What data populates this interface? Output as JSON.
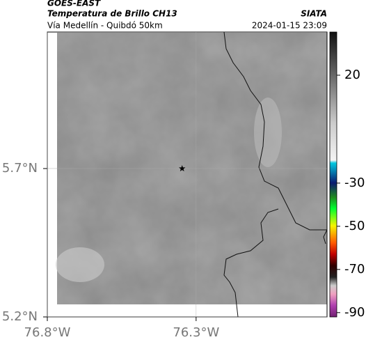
{
  "header": {
    "title": "GOES-EAST",
    "subtitle": "Temperatura de Brillo CH13",
    "source": "SIATA",
    "region": "Vía Medellín - Quibdó 50km",
    "timestamp": "2024-01-15 23:09"
  },
  "map": {
    "xlim": [
      -76.8,
      -75.86
    ],
    "ylim": [
      5.2,
      6.16
    ],
    "xticks": [
      {
        "value": -76.8,
        "label": "76.8°W"
      },
      {
        "value": -76.3,
        "label": "76.3°W"
      }
    ],
    "yticks": [
      {
        "value": 5.7,
        "label": "5.7°N"
      },
      {
        "value": 5.2,
        "label": "5.2°N"
      }
    ],
    "grid": true,
    "marker": {
      "lon": -76.347,
      "lat": 5.7
    },
    "colorbar": {
      "lim": [
        -92,
        40
      ],
      "ticks": [
        20,
        -30,
        -50,
        -70,
        -90
      ]
    }
  }
}
